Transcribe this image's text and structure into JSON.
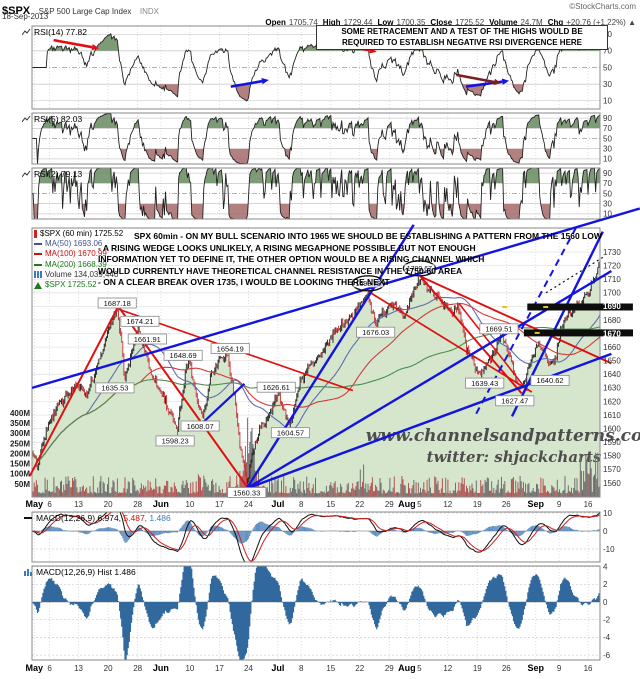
{
  "header": {
    "symbol": "$SPX",
    "symbol_desc": "S&P 500 Large Cap Index",
    "exchange": "INDX",
    "source": "©StockCharts.com",
    "date": "18-Sep-2013",
    "quote": [
      [
        "Open",
        "1705.74"
      ],
      [
        "High",
        "1729.44"
      ],
      [
        "Low",
        "1700.35"
      ],
      [
        "Close",
        "1725.52"
      ],
      [
        "Volume",
        "24.7M"
      ],
      [
        "Chg",
        "+20.76 (+1.22%) ▲"
      ]
    ]
  },
  "annotations": {
    "rsi_note_line1": "SOME RETRACEMENT AND A TEST OF THE HIGHS WOULD BE",
    "rsi_note_line2": "REQUIRED TO ESTABLISH NEGATIVE RSI DIVERGENCE HERE",
    "main_note_lines": [
      "SPX 60min - ON MY BULL SCENARIO INTO 1965 WE SHOULD BE ESTABLISHING A PATTERN FROM THE 1560 LOW",
      "- A RISING WEDGE LOOKS UNLIKELY, A RISING MEGAPHONE POSSIBLE BUT NOT ENOUGH",
      "INFORMATION YET TO DEFINE IT, THE OTHER OPTION WOULD BE A RISING CHANNEL WHICH",
      "WOULD CURRENTLY HAVE THEORETICAL CHANNEL RESISTANCE IN THE 1750-60 AREA",
      "- ON A CLEAR BREAK OVER 1735, I WOULD BE LOOKING THERE NEXT"
    ],
    "watermark_line1": "www.channelsandpatterns.com",
    "watermark_line2": "twitter: shjackcharts"
  },
  "panels": {
    "rsi14": {
      "label": "RSI(14) 77.82"
    },
    "rsi5": {
      "label": "RSI(5) 82.03"
    },
    "rsi2": {
      "label": "RSI(2) 79.13"
    },
    "macd": {
      "parts": [
        [
          "MACD(12,26,9) 6.974,",
          "#000000"
        ],
        [
          " 5.487,",
          "#cc1111"
        ],
        [
          " 1.486",
          "#3a7abf"
        ]
      ]
    },
    "hist": {
      "label": "MACD(12,26,9) Hist 1.486"
    },
    "main": {
      "legend": [
        {
          "text": "$SPX (60 min) 1725.52",
          "color": "#000000",
          "icon": "candle-icon",
          "icon_color": "#cc2222"
        },
        {
          "text": "MA(50) 1693.06",
          "color": "#44518f",
          "icon": "line-icon",
          "icon_color": "#44518f"
        },
        {
          "text": "MA(100) 1670.99",
          "color": "#cc1111",
          "icon": "line-icon",
          "icon_color": "#cc1111"
        },
        {
          "text": "MA(200) 1668.39",
          "color": "#1e7a1e",
          "icon": "line-icon",
          "icon_color": "#1e7a1e"
        },
        {
          "text": "Volume 134,039,440",
          "color": "#333333",
          "icon": "bars-icon",
          "icon_color": "#3a7abf"
        },
        {
          "text": "$SPX 1725.52",
          "color": "#1e7a1e",
          "icon": "arrow-icon",
          "icon_color": "#1e7a1e"
        }
      ]
    }
  },
  "chart_data": {
    "type": "candlestick",
    "title": "$SPX S&P 500 Large Cap Index, 60 min bars, May-Sep 2013",
    "price_axis": {
      "min": 1560,
      "max": 1730,
      "step": 10
    },
    "volume_axis": [
      "400M",
      "350M",
      "300M",
      "250M",
      "200M",
      "150M",
      "100M",
      "50M"
    ],
    "knockout_prices": [
      1690,
      1670
    ],
    "x_axis": {
      "ticks": [
        {
          "f": 0.004,
          "label": "May",
          "bold": true
        },
        {
          "f": 0.031,
          "label": "6"
        },
        {
          "f": 0.082,
          "label": "13"
        },
        {
          "f": 0.134,
          "label": "20"
        },
        {
          "f": 0.186,
          "label": "28"
        },
        {
          "f": 0.227,
          "label": "Jun",
          "bold": true
        },
        {
          "f": 0.278,
          "label": "10"
        },
        {
          "f": 0.33,
          "label": "17"
        },
        {
          "f": 0.381,
          "label": "24"
        },
        {
          "f": 0.433,
          "label": "Jul",
          "bold": true
        },
        {
          "f": 0.474,
          "label": "8"
        },
        {
          "f": 0.526,
          "label": "15"
        },
        {
          "f": 0.577,
          "label": "22"
        },
        {
          "f": 0.629,
          "label": "29"
        },
        {
          "f": 0.66,
          "label": "Aug",
          "bold": true
        },
        {
          "f": 0.682,
          "label": "5"
        },
        {
          "f": 0.732,
          "label": "12"
        },
        {
          "f": 0.784,
          "label": "19"
        },
        {
          "f": 0.835,
          "label": "26"
        },
        {
          "f": 0.887,
          "label": "Sep",
          "bold": true
        },
        {
          "f": 0.928,
          "label": "9"
        },
        {
          "f": 0.979,
          "label": "16"
        }
      ]
    },
    "oscillators": {
      "rsi_ticks": [
        90,
        70,
        50,
        30,
        10
      ],
      "macd_ticks": [
        10,
        0,
        -10
      ],
      "hist_ticks": [
        4,
        2,
        0,
        -2,
        -4,
        -6
      ],
      "rsi_values": {
        "rsi14": 77.82,
        "rsi5": 82.03,
        "rsi2": 79.13
      },
      "macd_values": {
        "macd": 6.974,
        "signal": 5.487,
        "hist": 1.486
      }
    },
    "price_keyframes": [
      [
        0,
        1582
      ],
      [
        0.01,
        1571
      ],
      [
        0.025,
        1598
      ],
      [
        0.045,
        1618
      ],
      [
        0.065,
        1626
      ],
      [
        0.08,
        1633
      ],
      [
        0.095,
        1625
      ],
      [
        0.11,
        1640
      ],
      [
        0.125,
        1658
      ],
      [
        0.14,
        1680
      ],
      [
        0.15,
        1687
      ],
      [
        0.157,
        1666
      ],
      [
        0.163,
        1636
      ],
      [
        0.175,
        1655
      ],
      [
        0.186,
        1674
      ],
      [
        0.197,
        1661
      ],
      [
        0.21,
        1640
      ],
      [
        0.222,
        1631
      ],
      [
        0.235,
        1621
      ],
      [
        0.248,
        1607
      ],
      [
        0.256,
        1598
      ],
      [
        0.27,
        1642
      ],
      [
        0.278,
        1649
      ],
      [
        0.29,
        1622
      ],
      [
        0.302,
        1608
      ],
      [
        0.315,
        1641
      ],
      [
        0.332,
        1652
      ],
      [
        0.344,
        1654
      ],
      [
        0.356,
        1626
      ],
      [
        0.366,
        1588
      ],
      [
        0.378,
        1560
      ],
      [
        0.392,
        1588
      ],
      [
        0.405,
        1603
      ],
      [
        0.42,
        1612
      ],
      [
        0.433,
        1627
      ],
      [
        0.447,
        1609
      ],
      [
        0.457,
        1604
      ],
      [
        0.47,
        1632
      ],
      [
        0.49,
        1648
      ],
      [
        0.51,
        1655
      ],
      [
        0.528,
        1668
      ],
      [
        0.545,
        1676
      ],
      [
        0.56,
        1681
      ],
      [
        0.578,
        1692
      ],
      [
        0.592,
        1699
      ],
      [
        0.605,
        1676
      ],
      [
        0.622,
        1688
      ],
      [
        0.638,
        1691
      ],
      [
        0.655,
        1684
      ],
      [
        0.668,
        1697
      ],
      [
        0.681,
        1710
      ],
      [
        0.695,
        1704
      ],
      [
        0.71,
        1697
      ],
      [
        0.726,
        1691
      ],
      [
        0.74,
        1686
      ],
      [
        0.752,
        1690
      ],
      [
        0.763,
        1661
      ],
      [
        0.775,
        1652
      ],
      [
        0.786,
        1639
      ],
      [
        0.8,
        1648
      ],
      [
        0.814,
        1656
      ],
      [
        0.827,
        1670
      ],
      [
        0.838,
        1657
      ],
      [
        0.849,
        1641
      ],
      [
        0.858,
        1627
      ],
      [
        0.868,
        1636
      ],
      [
        0.88,
        1653
      ],
      [
        0.892,
        1662
      ],
      [
        0.902,
        1657
      ],
      [
        0.912,
        1644
      ],
      [
        0.921,
        1652
      ],
      [
        0.931,
        1672
      ],
      [
        0.943,
        1684
      ],
      [
        0.956,
        1688
      ],
      [
        0.968,
        1694
      ],
      [
        0.98,
        1702
      ],
      [
        0.991,
        1710
      ],
      [
        1,
        1727
      ]
    ],
    "swing_labels": [
      {
        "f": 0.15,
        "price": 1692.5,
        "text": "1687.18"
      },
      {
        "f": 0.19,
        "price": 1679,
        "text": "1674.21"
      },
      {
        "f": 0.203,
        "price": 1666,
        "text": "1661.91"
      },
      {
        "f": 0.146,
        "price": 1630,
        "text": "1635.53"
      },
      {
        "f": 0.266,
        "price": 1654,
        "text": "1648.69"
      },
      {
        "f": 0.252,
        "price": 1591,
        "text": "1598.23"
      },
      {
        "f": 0.296,
        "price": 1602,
        "text": "1608.07"
      },
      {
        "f": 0.349,
        "price": 1659,
        "text": "1654.19"
      },
      {
        "f": 0.43,
        "price": 1630.5,
        "text": "1626.61"
      },
      {
        "f": 0.455,
        "price": 1597,
        "text": "1604.57"
      },
      {
        "f": 0.378,
        "price": 1553,
        "text": "1560.33"
      },
      {
        "f": 0.605,
        "price": 1671,
        "text": "1676.03"
      },
      {
        "f": 0.797,
        "price": 1633.5,
        "text": "1639.43"
      },
      {
        "f": 0.822,
        "price": 1673.5,
        "text": "1669.51"
      },
      {
        "f": 0.85,
        "price": 1620.5,
        "text": "1627.47"
      },
      {
        "f": 0.912,
        "price": 1635.5,
        "text": "1640.62"
      }
    ],
    "ellipses": [
      {
        "f": 0.592,
        "price": 1707,
        "text": "1698.78"
      },
      {
        "f": 0.682,
        "price": 1718,
        "text": "1709.67"
      }
    ],
    "trendlines": [
      {
        "x1": -0.004,
        "p1": 1565,
        "x2": 0.152,
        "p2": 1690,
        "color": "red",
        "w": 2
      },
      {
        "x1": 0.152,
        "p1": 1690,
        "x2": 0.381,
        "p2": 1556,
        "color": "red",
        "w": 2
      },
      {
        "x1": 0.152,
        "p1": 1688,
        "x2": 0.565,
        "p2": 1628,
        "color": "red",
        "w": 1.7
      },
      {
        "x1": 0.592,
        "p1": 1701,
        "x2": 0.88,
        "p2": 1627,
        "color": "red",
        "w": 1.7
      },
      {
        "x1": 0.684,
        "p1": 1712,
        "x2": 0.862,
        "p2": 1626,
        "color": "red",
        "w": 2
      },
      {
        "x1": 0.684,
        "p1": 1712,
        "x2": 1.02,
        "p2": 1648,
        "color": "red",
        "w": 2
      },
      {
        "x1": 0.752,
        "p1": 1692,
        "x2": 0.872,
        "p2": 1628,
        "color": "red",
        "w": 1.5
      },
      {
        "x1": 0.378,
        "p1": 1556,
        "x2": 0.672,
        "p2": 1750,
        "color": "blue",
        "w": 2.4
      },
      {
        "x1": 0.378,
        "p1": 1556,
        "x2": 1.02,
        "p2": 1716,
        "color": "blue",
        "w": 2.4
      },
      {
        "x1": 0.378,
        "p1": 1556,
        "x2": 1.02,
        "p2": 1655,
        "color": "blue",
        "w": 2.4
      },
      {
        "x1": 0,
        "p1": 1630,
        "x2": 1.07,
        "p2": 1762,
        "color": "blue",
        "w": 2.4
      },
      {
        "x1": 0.302,
        "p1": 1605,
        "x2": 0.374,
        "p2": 1633,
        "color": "blue",
        "w": 2.2
      },
      {
        "x1": 0.845,
        "p1": 1609,
        "x2": 1.005,
        "p2": 1745,
        "color": "blue",
        "w": 2.4
      },
      {
        "x1": 0.782,
        "p1": 1611,
        "x2": 0.958,
        "p2": 1748,
        "color": "blue",
        "w": 2,
        "dash": "7,5"
      },
      {
        "x1": 0.905,
        "p1": 1700,
        "x2": 1.005,
        "p2": 1726,
        "color": "black",
        "w": 1.2,
        "dash": "2,3"
      }
    ],
    "bands": [
      {
        "price": 1689.5,
        "f0": 0.872,
        "f1": 1.058,
        "dashes": [
          0.828,
          0.9
        ]
      },
      {
        "price": 1670.5,
        "f0": 0.866,
        "f1": 1.058,
        "dashes": [
          0.82,
          0.885
        ]
      }
    ],
    "rsi14_arrows": [
      {
        "f0": 0.038,
        "v0": 83,
        "f1": 0.118,
        "v1": 73,
        "color": "red"
      },
      {
        "f0": 0.525,
        "v0": 80,
        "f1": 0.607,
        "v1": 69,
        "color": "red"
      },
      {
        "f0": 0.35,
        "v0": 27,
        "f1": 0.417,
        "v1": 35,
        "color": "blue"
      },
      {
        "f0": 0.764,
        "v0": 27,
        "f1": 0.84,
        "v1": 34,
        "color": "blue"
      },
      {
        "f0": 0.748,
        "v0": 41,
        "f1": 0.826,
        "v1": 31,
        "color": "darkred"
      }
    ]
  }
}
